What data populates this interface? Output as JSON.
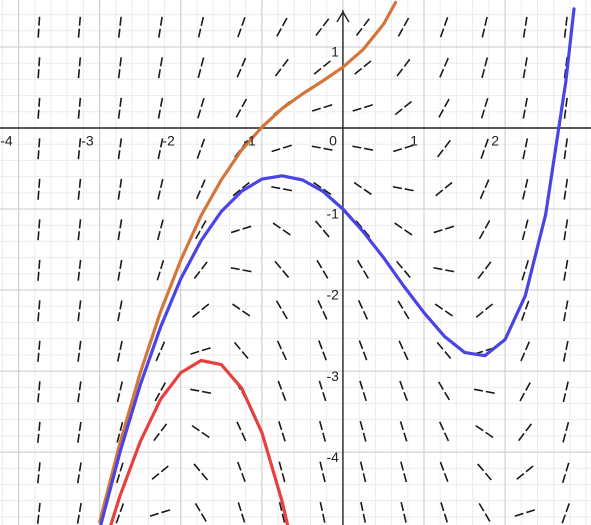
{
  "chart_data": {
    "type": "line",
    "xlim": [
      -4.23,
      3.06
    ],
    "ylim": [
      -4.9,
      1.58
    ],
    "xticks": [
      -4,
      -3,
      -2,
      -1,
      0,
      1,
      2
    ],
    "yticks": [
      -4,
      -3,
      -2,
      -1,
      1
    ],
    "grid": true,
    "series": [
      {
        "name": "orange",
        "color": "#d4763c",
        "x": [
          -3,
          -2.75,
          -2.5,
          -2.25,
          -2,
          -1.75,
          -1.5,
          -1.25,
          -1,
          -0.75,
          -0.5,
          -0.25,
          0,
          0.25,
          0.5,
          0.65
        ],
        "values": [
          -4.86,
          -3.89,
          -3.02,
          -2.27,
          -1.63,
          -1.08,
          -0.64,
          -0.27,
          0.01,
          0.24,
          0.42,
          0.58,
          0.75,
          0.97,
          1.28,
          1.55
        ]
      },
      {
        "name": "blue",
        "color": "#4a44e6",
        "x": [
          -3,
          -2.75,
          -2.5,
          -2.25,
          -2,
          -1.75,
          -1.5,
          -1.25,
          -1,
          -0.75,
          -0.5,
          -0.25,
          0,
          0.25,
          0.5,
          0.75,
          1,
          1.25,
          1.5,
          1.75,
          2,
          2.25,
          2.5,
          2.75,
          2.85
        ],
        "values": [
          -4.95,
          -4.0,
          -3.17,
          -2.46,
          -1.86,
          -1.39,
          -1.03,
          -0.78,
          -0.63,
          -0.59,
          -0.64,
          -0.78,
          -1,
          -1.28,
          -1.6,
          -1.95,
          -2.28,
          -2.57,
          -2.77,
          -2.81,
          -2.61,
          -2.07,
          -1.07,
          0.58,
          1.47
        ]
      },
      {
        "name": "red",
        "color": "#e8403e",
        "x": [
          -2.9,
          -2.75,
          -2.5,
          -2.25,
          -2,
          -1.75,
          -1.5,
          -1.25,
          -1,
          -0.75,
          -0.65
        ],
        "values": [
          -5.02,
          -4.54,
          -3.87,
          -3.35,
          -3.02,
          -2.87,
          -2.92,
          -3.21,
          -3.76,
          -4.61,
          -5.04
        ]
      }
    ]
  }
}
